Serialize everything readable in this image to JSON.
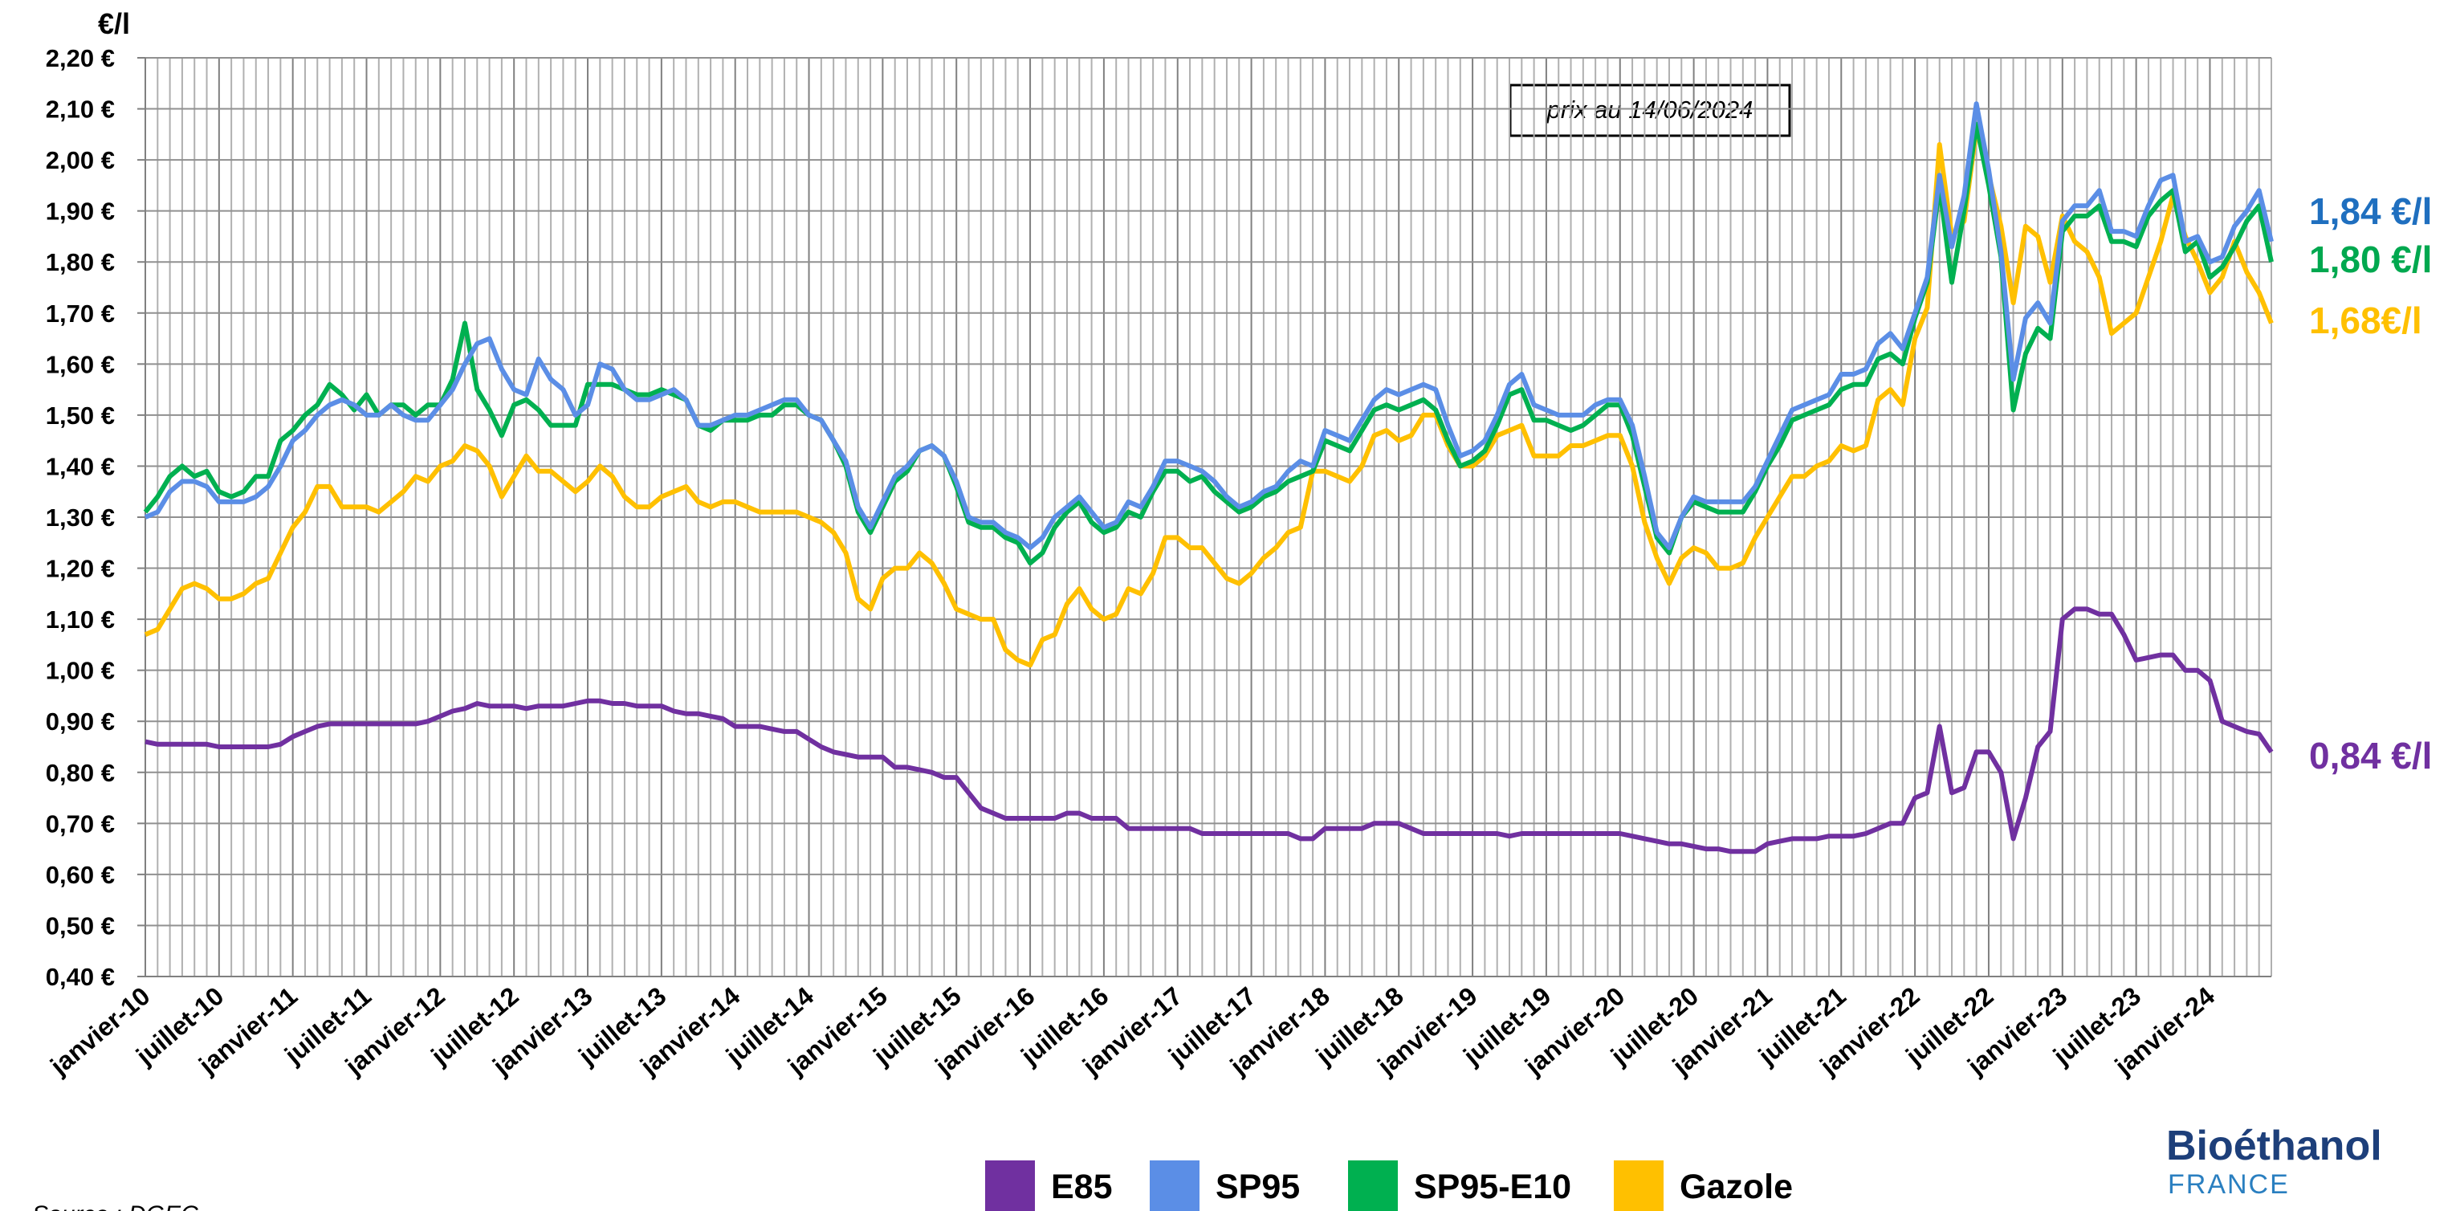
{
  "chart_data": {
    "type": "line",
    "y_label": "€/l",
    "annotation_box": "prix au 14/06/2024",
    "source": "Source : DGEC",
    "logo": {
      "name": "Bioéthanol",
      "sub": "FRANCE"
    },
    "end_labels": [
      {
        "text": "1,84 €/l",
        "color": "#1f6fbf"
      },
      {
        "text": "1,80 €/l",
        "color": "#00a84f"
      },
      {
        "text": "1,68€/l",
        "color": "#ffc000"
      },
      {
        "text": "0,84 €/l",
        "color": "#7030a0"
      }
    ],
    "categories": [
      "janvier-10",
      null,
      null,
      null,
      null,
      null,
      "juillet-10",
      null,
      null,
      null,
      null,
      null,
      "janvier-11",
      null,
      null,
      null,
      null,
      null,
      "juillet-11",
      null,
      null,
      null,
      null,
      null,
      "janvier-12",
      null,
      null,
      null,
      null,
      null,
      "juillet-12",
      null,
      null,
      null,
      null,
      null,
      "janvier-13",
      null,
      null,
      null,
      null,
      null,
      "juillet-13",
      null,
      null,
      null,
      null,
      null,
      "janvier-14",
      null,
      null,
      null,
      null,
      null,
      "juillet-14",
      null,
      null,
      null,
      null,
      null,
      "janvier-15",
      null,
      null,
      null,
      null,
      null,
      "juillet-15",
      null,
      null,
      null,
      null,
      null,
      "janvier-16",
      null,
      null,
      null,
      null,
      null,
      "juillet-16",
      null,
      null,
      null,
      null,
      null,
      "janvier-17",
      null,
      null,
      null,
      null,
      null,
      "juillet-17",
      null,
      null,
      null,
      null,
      null,
      "janvier-18",
      null,
      null,
      null,
      null,
      null,
      "juillet-18",
      null,
      null,
      null,
      null,
      null,
      "janvier-19",
      null,
      null,
      null,
      null,
      null,
      "juillet-19",
      null,
      null,
      null,
      null,
      null,
      "janvier-20",
      null,
      null,
      null,
      null,
      null,
      "juillet-20",
      null,
      null,
      null,
      null,
      null,
      "janvier-21",
      null,
      null,
      null,
      null,
      null,
      "juillet-21",
      null,
      null,
      null,
      null,
      null,
      "janvier-22",
      null,
      null,
      null,
      null,
      null,
      "juillet-22",
      null,
      null,
      null,
      null,
      null,
      "janvier-23",
      null,
      null,
      null,
      null,
      null,
      "juillet-23",
      null,
      null,
      null,
      null,
      null,
      "janvier-24",
      null,
      null,
      null,
      null,
      null
    ],
    "series": [
      {
        "name": "E85",
        "color": "#7030a0",
        "values": [
          0.86,
          0.855,
          0.855,
          0.855,
          0.855,
          0.855,
          0.85,
          0.85,
          0.85,
          0.85,
          0.85,
          0.855,
          0.87,
          0.88,
          0.89,
          0.895,
          0.895,
          0.895,
          0.895,
          0.895,
          0.895,
          0.895,
          0.895,
          0.9,
          0.91,
          0.92,
          0.925,
          0.935,
          0.93,
          0.93,
          0.93,
          0.925,
          0.93,
          0.93,
          0.93,
          0.935,
          0.94,
          0.94,
          0.935,
          0.935,
          0.93,
          0.93,
          0.93,
          0.92,
          0.915,
          0.915,
          0.91,
          0.905,
          0.89,
          0.89,
          0.89,
          0.885,
          0.88,
          0.88,
          0.865,
          0.85,
          0.84,
          0.835,
          0.83,
          0.83,
          0.83,
          0.81,
          0.81,
          0.805,
          0.8,
          0.79,
          0.79,
          0.76,
          0.73,
          0.72,
          0.71,
          0.71,
          0.71,
          0.71,
          0.71,
          0.72,
          0.72,
          0.71,
          0.71,
          0.71,
          0.69,
          0.69,
          0.69,
          0.69,
          0.69,
          0.69,
          0.68,
          0.68,
          0.68,
          0.68,
          0.68,
          0.68,
          0.68,
          0.68,
          0.67,
          0.67,
          0.69,
          0.69,
          0.69,
          0.69,
          0.7,
          0.7,
          0.7,
          0.69,
          0.68,
          0.68,
          0.68,
          0.68,
          0.68,
          0.68,
          0.68,
          0.675,
          0.68,
          0.68,
          0.68,
          0.68,
          0.68,
          0.68,
          0.68,
          0.68,
          0.68,
          0.675,
          0.67,
          0.665,
          0.66,
          0.66,
          0.655,
          0.65,
          0.65,
          0.645,
          0.645,
          0.645,
          0.66,
          0.665,
          0.67,
          0.67,
          0.67,
          0.675,
          0.675,
          0.675,
          0.68,
          0.69,
          0.7,
          0.7,
          0.75,
          0.76,
          0.89,
          0.76,
          0.77,
          0.84,
          0.84,
          0.8,
          0.67,
          0.75,
          0.85,
          0.88,
          1.1,
          1.12,
          1.12,
          1.11,
          1.11,
          1.07,
          1.02,
          1.025,
          1.03,
          1.03,
          1.0,
          1.0,
          0.98,
          0.9,
          0.89,
          0.88,
          0.875,
          0.84
        ]
      },
      {
        "name": "SP95",
        "color": "#5b8ee6",
        "values": [
          1.3,
          1.31,
          1.35,
          1.37,
          1.37,
          1.36,
          1.33,
          1.33,
          1.33,
          1.34,
          1.36,
          1.4,
          1.45,
          1.47,
          1.5,
          1.52,
          1.53,
          1.52,
          1.5,
          1.5,
          1.52,
          1.5,
          1.49,
          1.49,
          1.52,
          1.55,
          1.6,
          1.64,
          1.65,
          1.59,
          1.55,
          1.54,
          1.61,
          1.57,
          1.55,
          1.5,
          1.52,
          1.6,
          1.59,
          1.55,
          1.53,
          1.53,
          1.54,
          1.55,
          1.53,
          1.48,
          1.48,
          1.49,
          1.5,
          1.5,
          1.51,
          1.52,
          1.53,
          1.53,
          1.5,
          1.49,
          1.45,
          1.41,
          1.32,
          1.28,
          1.33,
          1.38,
          1.4,
          1.43,
          1.44,
          1.42,
          1.37,
          1.3,
          1.29,
          1.29,
          1.27,
          1.26,
          1.24,
          1.26,
          1.3,
          1.32,
          1.34,
          1.31,
          1.28,
          1.29,
          1.33,
          1.32,
          1.36,
          1.41,
          1.41,
          1.4,
          1.39,
          1.37,
          1.34,
          1.32,
          1.33,
          1.35,
          1.36,
          1.39,
          1.41,
          1.4,
          1.47,
          1.46,
          1.45,
          1.49,
          1.53,
          1.55,
          1.54,
          1.55,
          1.56,
          1.55,
          1.48,
          1.42,
          1.43,
          1.45,
          1.5,
          1.56,
          1.58,
          1.52,
          1.51,
          1.5,
          1.5,
          1.5,
          1.52,
          1.53,
          1.53,
          1.48,
          1.38,
          1.27,
          1.24,
          1.3,
          1.34,
          1.33,
          1.33,
          1.33,
          1.33,
          1.36,
          1.41,
          1.46,
          1.51,
          1.52,
          1.53,
          1.54,
          1.58,
          1.58,
          1.59,
          1.64,
          1.66,
          1.63,
          1.7,
          1.77,
          1.97,
          1.83,
          1.93,
          2.11,
          1.98,
          1.82,
          1.57,
          1.69,
          1.72,
          1.68,
          1.88,
          1.91,
          1.91,
          1.94,
          1.86,
          1.86,
          1.85,
          1.91,
          1.96,
          1.97,
          1.84,
          1.85,
          1.8,
          1.81,
          1.87,
          1.9,
          1.94,
          1.84
        ]
      },
      {
        "name": "SP95-E10",
        "color": "#00b050",
        "values": [
          1.31,
          1.34,
          1.38,
          1.4,
          1.38,
          1.39,
          1.35,
          1.34,
          1.35,
          1.38,
          1.38,
          1.45,
          1.47,
          1.5,
          1.52,
          1.56,
          1.54,
          1.51,
          1.54,
          1.5,
          1.52,
          1.52,
          1.5,
          1.52,
          1.52,
          1.57,
          1.68,
          1.55,
          1.51,
          1.46,
          1.52,
          1.53,
          1.51,
          1.48,
          1.48,
          1.48,
          1.56,
          1.56,
          1.56,
          1.55,
          1.54,
          1.54,
          1.55,
          1.54,
          1.53,
          1.48,
          1.47,
          1.49,
          1.49,
          1.49,
          1.5,
          1.5,
          1.52,
          1.52,
          1.5,
          1.49,
          1.45,
          1.4,
          1.31,
          1.27,
          1.32,
          1.37,
          1.39,
          1.43,
          1.44,
          1.42,
          1.36,
          1.29,
          1.28,
          1.28,
          1.26,
          1.25,
          1.21,
          1.23,
          1.28,
          1.31,
          1.33,
          1.29,
          1.27,
          1.28,
          1.31,
          1.3,
          1.35,
          1.39,
          1.39,
          1.37,
          1.38,
          1.35,
          1.33,
          1.31,
          1.32,
          1.34,
          1.35,
          1.37,
          1.38,
          1.39,
          1.45,
          1.44,
          1.43,
          1.47,
          1.51,
          1.52,
          1.51,
          1.52,
          1.53,
          1.51,
          1.45,
          1.4,
          1.41,
          1.43,
          1.48,
          1.54,
          1.55,
          1.49,
          1.49,
          1.48,
          1.47,
          1.48,
          1.5,
          1.52,
          1.52,
          1.46,
          1.36,
          1.26,
          1.23,
          1.3,
          1.33,
          1.32,
          1.31,
          1.31,
          1.31,
          1.35,
          1.4,
          1.44,
          1.49,
          1.5,
          1.51,
          1.52,
          1.55,
          1.56,
          1.56,
          1.61,
          1.62,
          1.6,
          1.69,
          1.76,
          1.95,
          1.76,
          1.9,
          2.07,
          1.95,
          1.81,
          1.51,
          1.62,
          1.67,
          1.65,
          1.86,
          1.89,
          1.89,
          1.91,
          1.84,
          1.84,
          1.83,
          1.89,
          1.92,
          1.94,
          1.82,
          1.84,
          1.77,
          1.79,
          1.83,
          1.88,
          1.91,
          1.8
        ]
      },
      {
        "name": "Gazole",
        "color": "#ffc000",
        "values": [
          1.07,
          1.08,
          1.12,
          1.16,
          1.17,
          1.16,
          1.14,
          1.14,
          1.15,
          1.17,
          1.18,
          1.23,
          1.28,
          1.31,
          1.36,
          1.36,
          1.32,
          1.32,
          1.32,
          1.31,
          1.33,
          1.35,
          1.38,
          1.37,
          1.4,
          1.41,
          1.44,
          1.43,
          1.4,
          1.34,
          1.38,
          1.42,
          1.39,
          1.39,
          1.37,
          1.35,
          1.37,
          1.4,
          1.38,
          1.34,
          1.32,
          1.32,
          1.34,
          1.35,
          1.36,
          1.33,
          1.32,
          1.33,
          1.33,
          1.32,
          1.31,
          1.31,
          1.31,
          1.31,
          1.3,
          1.29,
          1.27,
          1.23,
          1.14,
          1.12,
          1.18,
          1.2,
          1.2,
          1.23,
          1.21,
          1.17,
          1.12,
          1.11,
          1.1,
          1.1,
          1.04,
          1.02,
          1.01,
          1.06,
          1.07,
          1.13,
          1.16,
          1.12,
          1.1,
          1.11,
          1.16,
          1.15,
          1.19,
          1.26,
          1.26,
          1.24,
          1.24,
          1.21,
          1.18,
          1.17,
          1.19,
          1.22,
          1.24,
          1.27,
          1.28,
          1.39,
          1.39,
          1.38,
          1.37,
          1.4,
          1.46,
          1.47,
          1.45,
          1.46,
          1.5,
          1.5,
          1.44,
          1.4,
          1.4,
          1.42,
          1.46,
          1.47,
          1.48,
          1.42,
          1.42,
          1.42,
          1.44,
          1.44,
          1.45,
          1.46,
          1.46,
          1.4,
          1.29,
          1.22,
          1.17,
          1.22,
          1.24,
          1.23,
          1.2,
          1.2,
          1.21,
          1.26,
          1.3,
          1.34,
          1.38,
          1.38,
          1.4,
          1.41,
          1.44,
          1.43,
          1.44,
          1.53,
          1.55,
          1.52,
          1.65,
          1.71,
          2.03,
          1.85,
          1.88,
          2.06,
          1.97,
          1.87,
          1.72,
          1.87,
          1.85,
          1.76,
          1.89,
          1.84,
          1.82,
          1.77,
          1.66,
          1.68,
          1.7,
          1.77,
          1.84,
          1.93,
          1.85,
          1.8,
          1.74,
          1.77,
          1.84,
          1.78,
          1.74,
          1.68
        ]
      }
    ],
    "ylim": [
      0.4,
      2.2
    ],
    "yticks": [
      {
        "value": 0.4,
        "label": "0,40 €"
      },
      {
        "value": 0.5,
        "label": "0,50 €"
      },
      {
        "value": 0.6,
        "label": "0,60 €"
      },
      {
        "value": 0.7,
        "label": "0,70 €"
      },
      {
        "value": 0.8,
        "label": "0,80 €"
      },
      {
        "value": 0.9,
        "label": "0,90 €"
      },
      {
        "value": 1.0,
        "label": "1,00 €"
      },
      {
        "value": 1.1,
        "label": "1,10 €"
      },
      {
        "value": 1.2,
        "label": "1,20 €"
      },
      {
        "value": 1.3,
        "label": "1,30 €"
      },
      {
        "value": 1.4,
        "label": "1,40 €"
      },
      {
        "value": 1.5,
        "label": "1,50 €"
      },
      {
        "value": 1.6,
        "label": "1,60 €"
      },
      {
        "value": 1.7,
        "label": "1,70 €"
      },
      {
        "value": 1.8,
        "label": "1,80 €"
      },
      {
        "value": 1.9,
        "label": "1,90 €"
      },
      {
        "value": 2.0,
        "label": "2,00 €"
      },
      {
        "value": 2.1,
        "label": "2,10 €"
      },
      {
        "value": 2.2,
        "label": "2,20 €"
      }
    ],
    "grid": true,
    "legend": "bottom"
  }
}
